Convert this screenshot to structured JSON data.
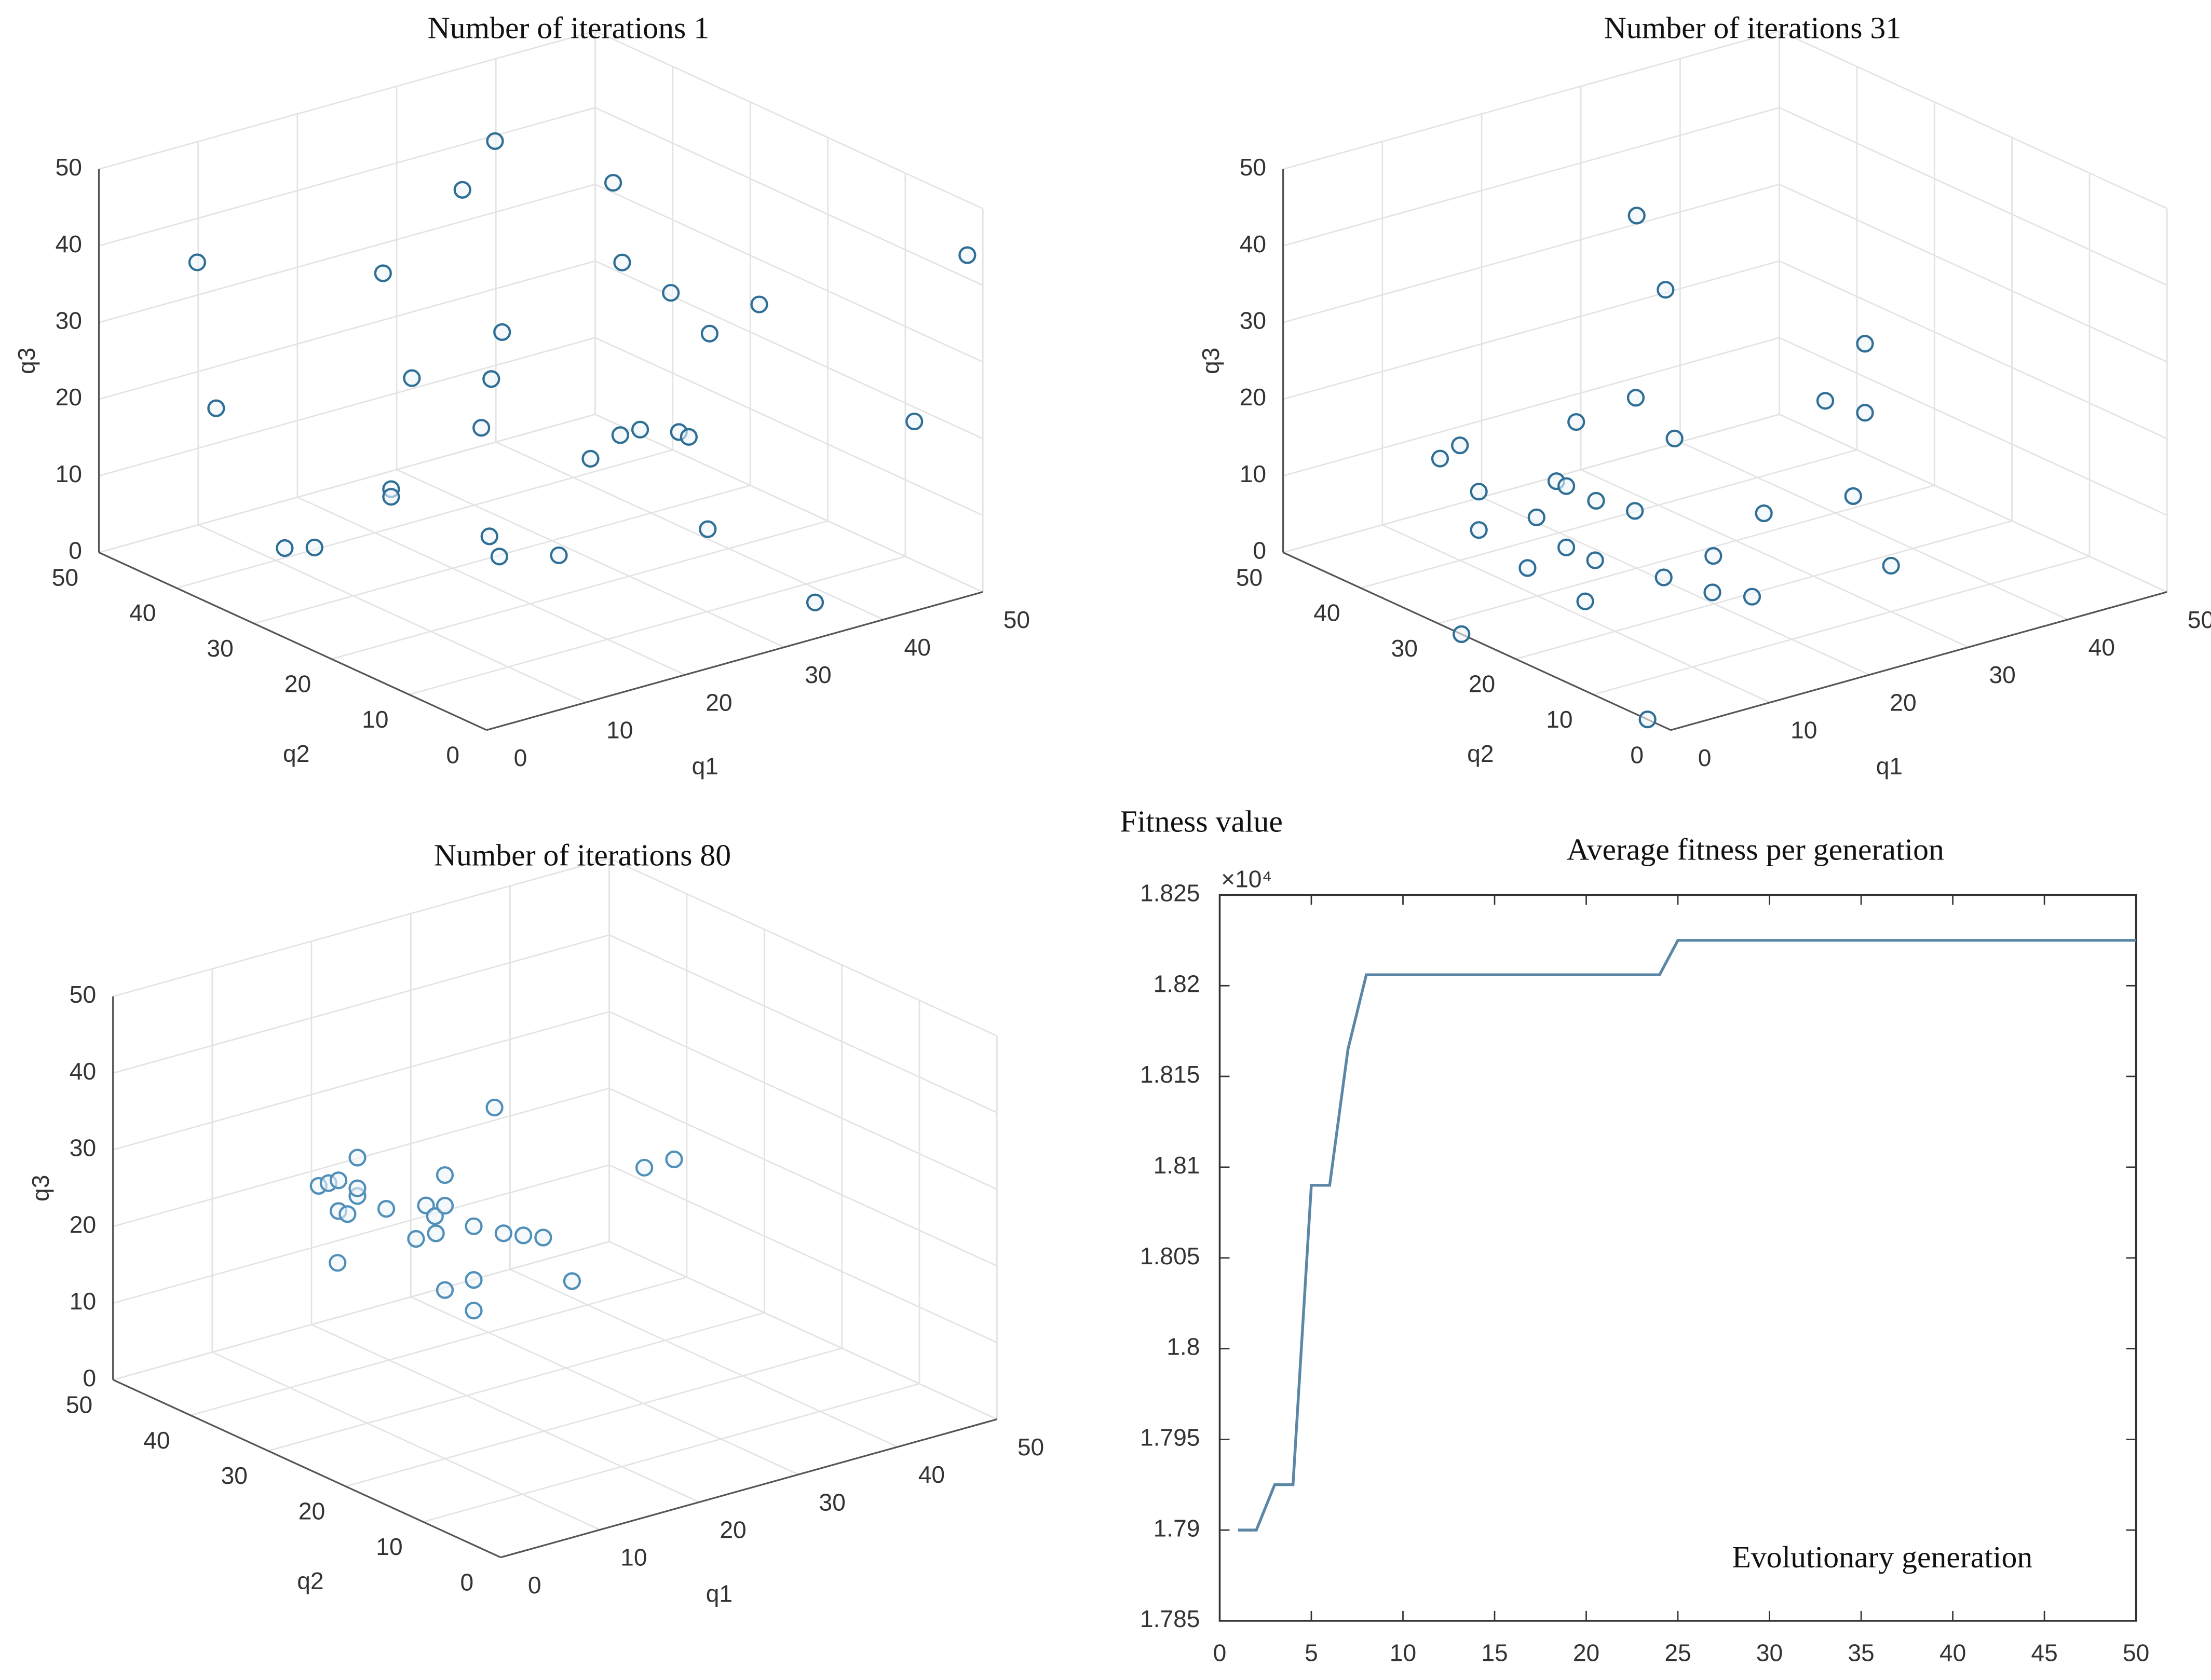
{
  "chart_data": [
    {
      "type": "scatter3d",
      "title": "Number of iterations 1",
      "xlabel": "q1",
      "ylabel": "q2",
      "zlabel": "q3",
      "xlim": [
        0,
        50
      ],
      "ylim": [
        0,
        50
      ],
      "zlim": [
        0,
        50
      ],
      "xticks": [
        0,
        10,
        20,
        30,
        40,
        50
      ],
      "yticks": [
        0,
        10,
        20,
        30,
        40,
        50
      ],
      "zticks": [
        0,
        10,
        20,
        30,
        40,
        50
      ],
      "grid": true,
      "color": "#2f6f96",
      "x": [
        6,
        4,
        13,
        12,
        21,
        36,
        25,
        20,
        19,
        6,
        6,
        7,
        10,
        12,
        13,
        19,
        30,
        33,
        35,
        35,
        36,
        44,
        41,
        42,
        42,
        47,
        34,
        37,
        47,
        50
      ],
      "y": [
        45,
        40,
        30,
        25,
        30,
        45,
        30,
        25,
        25,
        20,
        20,
        35,
        35,
        15,
        15,
        15,
        25,
        25,
        25,
        20,
        20,
        40,
        35,
        30,
        25,
        25,
        15,
        5,
        5,
        2
      ],
      "z": [
        38,
        22,
        41,
        30,
        49,
        43,
        29,
        27,
        21,
        20,
        19,
        5,
        4,
        14,
        11,
        9,
        13,
        15,
        15,
        17,
        16,
        37,
        30,
        28,
        25,
        27,
        7,
        1,
        21,
        43
      ]
    },
    {
      "type": "scatter3d",
      "title": "Number of iterations 31",
      "xlabel": "q1",
      "ylabel": "q2",
      "zlabel": "q3",
      "xlim": [
        0,
        50
      ],
      "ylim": [
        0,
        50
      ],
      "zlim": [
        0,
        50
      ],
      "xticks": [
        0,
        10,
        20,
        30,
        40,
        50
      ],
      "yticks": [
        0,
        10,
        20,
        30,
        40,
        50
      ],
      "zticks": [
        0,
        10,
        20,
        30,
        40,
        50
      ],
      "grid": true,
      "color": "#2f6f96",
      "x": [
        20,
        19,
        16,
        10,
        16,
        8,
        10,
        8,
        8,
        8,
        9,
        12,
        6,
        12,
        9,
        8,
        9,
        7,
        11,
        16,
        12,
        16,
        25,
        34,
        30,
        39,
        43,
        43,
        0,
        0
      ],
      "y": [
        30,
        25,
        25,
        25,
        20,
        40,
        40,
        35,
        35,
        25,
        25,
        25,
        25,
        20,
        25,
        20,
        30,
        20,
        15,
        15,
        10,
        10,
        20,
        20,
        10,
        30,
        30,
        30,
        27,
        3
      ],
      "z": [
        46,
        39,
        26,
        25,
        23,
        14,
        15,
        12,
        7,
        18,
        17,
        14,
        14,
        15,
        9,
        10,
        4,
        5,
        9,
        10,
        9,
        7,
        10,
        9,
        6,
        15,
        21,
        12,
        0,
        0
      ]
    },
    {
      "type": "scatter3d",
      "title": "Number of iterations 80",
      "xlabel": "q1",
      "ylabel": "q2",
      "zlabel": "q3",
      "xlim": [
        0,
        50
      ],
      "ylim": [
        0,
        50
      ],
      "zlim": [
        0,
        50
      ],
      "xticks": [
        0,
        10,
        20,
        30,
        40,
        50
      ],
      "yticks": [
        0,
        10,
        20,
        30,
        40,
        50
      ],
      "zticks": [
        0,
        10,
        20,
        30,
        40,
        50
      ],
      "grid": true,
      "color": "#4f8fb8",
      "x": [
        9,
        10,
        11,
        9,
        9,
        9,
        11,
        8,
        7,
        8,
        12,
        11,
        13,
        9,
        10,
        10,
        15,
        9,
        12,
        14,
        16,
        10,
        9,
        9,
        15,
        34,
        37
      ],
      "y": [
        35,
        35,
        35,
        30,
        30,
        30,
        35,
        30,
        30,
        25,
        25,
        25,
        25,
        20,
        20,
        20,
        20,
        15,
        15,
        15,
        15,
        20,
        15,
        15,
        10,
        25,
        25
      ],
      "z": [
        29,
        29,
        29,
        35,
        30,
        31,
        25,
        28,
        22,
        31,
        30,
        26,
        26,
        32,
        33,
        37,
        44,
        33,
        31,
        30,
        29,
        22,
        26,
        22,
        26,
        27,
        27
      ]
    },
    {
      "type": "line",
      "title": "Average fitness per generation",
      "ylabel": "Fitness value",
      "multiplier": "×10⁴",
      "annotation": "Evolutionary generation",
      "color": "#5a87a6",
      "x": [
        1,
        2,
        3,
        4,
        5,
        6,
        7,
        8,
        9,
        10,
        11,
        12,
        13,
        14,
        15,
        16,
        17,
        18,
        19,
        20,
        21,
        22,
        23,
        24,
        25,
        26,
        27,
        28,
        29,
        30,
        31,
        32,
        33,
        34,
        35,
        36,
        37,
        38,
        39,
        40,
        41,
        42,
        43,
        44,
        45,
        46,
        47,
        48,
        49,
        50
      ],
      "values": [
        1.79,
        1.79,
        1.7925,
        1.7925,
        1.809,
        1.809,
        1.8165,
        1.8206,
        1.8206,
        1.8206,
        1.8206,
        1.8206,
        1.8206,
        1.8206,
        1.8206,
        1.8206,
        1.8206,
        1.8206,
        1.8206,
        1.8206,
        1.8206,
        1.8206,
        1.8206,
        1.8206,
        1.8225,
        1.8225,
        1.8225,
        1.8225,
        1.8225,
        1.8225,
        1.8225,
        1.8225,
        1.8225,
        1.8225,
        1.8225,
        1.8225,
        1.8225,
        1.8225,
        1.8225,
        1.8225,
        1.8225,
        1.8225,
        1.8225,
        1.8225,
        1.8225,
        1.8225,
        1.8225,
        1.8225,
        1.8225,
        1.8225
      ],
      "xlim": [
        0,
        50
      ],
      "ylim": [
        1.785,
        1.825
      ],
      "xticks": [
        0,
        5,
        10,
        15,
        20,
        25,
        30,
        35,
        40,
        45,
        50
      ],
      "yticks": [
        1.785,
        1.79,
        1.795,
        1.8,
        1.805,
        1.81,
        1.815,
        1.82,
        1.825
      ]
    }
  ]
}
